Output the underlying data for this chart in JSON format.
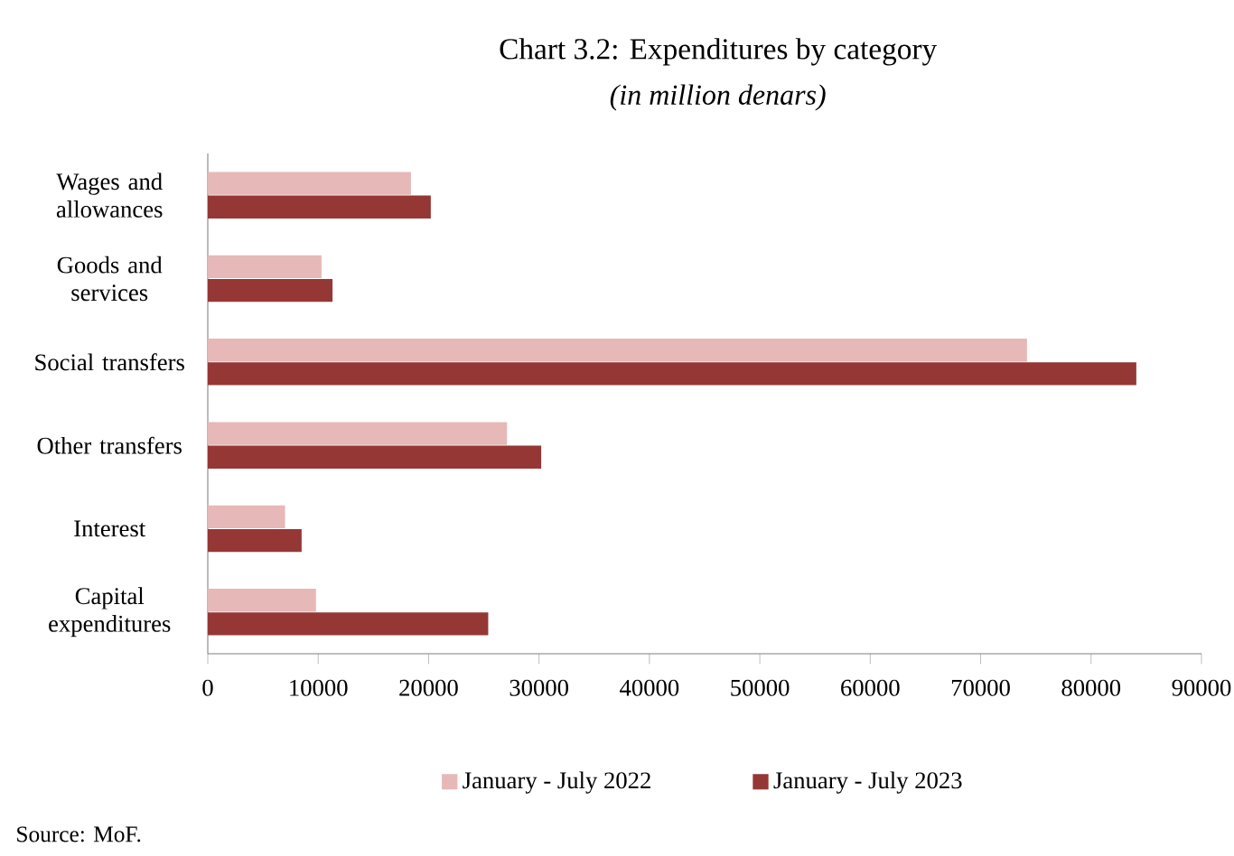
{
  "chart_data": {
    "type": "bar",
    "orientation": "horizontal",
    "title": "Chart 3.2: Expenditures by category",
    "subtitle": "(in million denars)",
    "categories": [
      "Wages and allowances",
      "Goods and services",
      "Social transfers",
      "Other transfers",
      "Interest",
      "Capital expenditures"
    ],
    "series": [
      {
        "name": "January - July 2022",
        "color": "#e6b8b7",
        "values": [
          18400,
          10300,
          74200,
          27100,
          7000,
          9800
        ]
      },
      {
        "name": "January - July 2023",
        "color": "#953735",
        "values": [
          20200,
          11300,
          84100,
          30200,
          8500,
          25400
        ]
      }
    ],
    "xlim": [
      0,
      90000
    ],
    "xticks": [
      0,
      10000,
      20000,
      30000,
      40000,
      50000,
      60000,
      70000,
      80000,
      90000
    ],
    "legend": "bottom",
    "annotations": [
      "Source: MoF."
    ]
  }
}
